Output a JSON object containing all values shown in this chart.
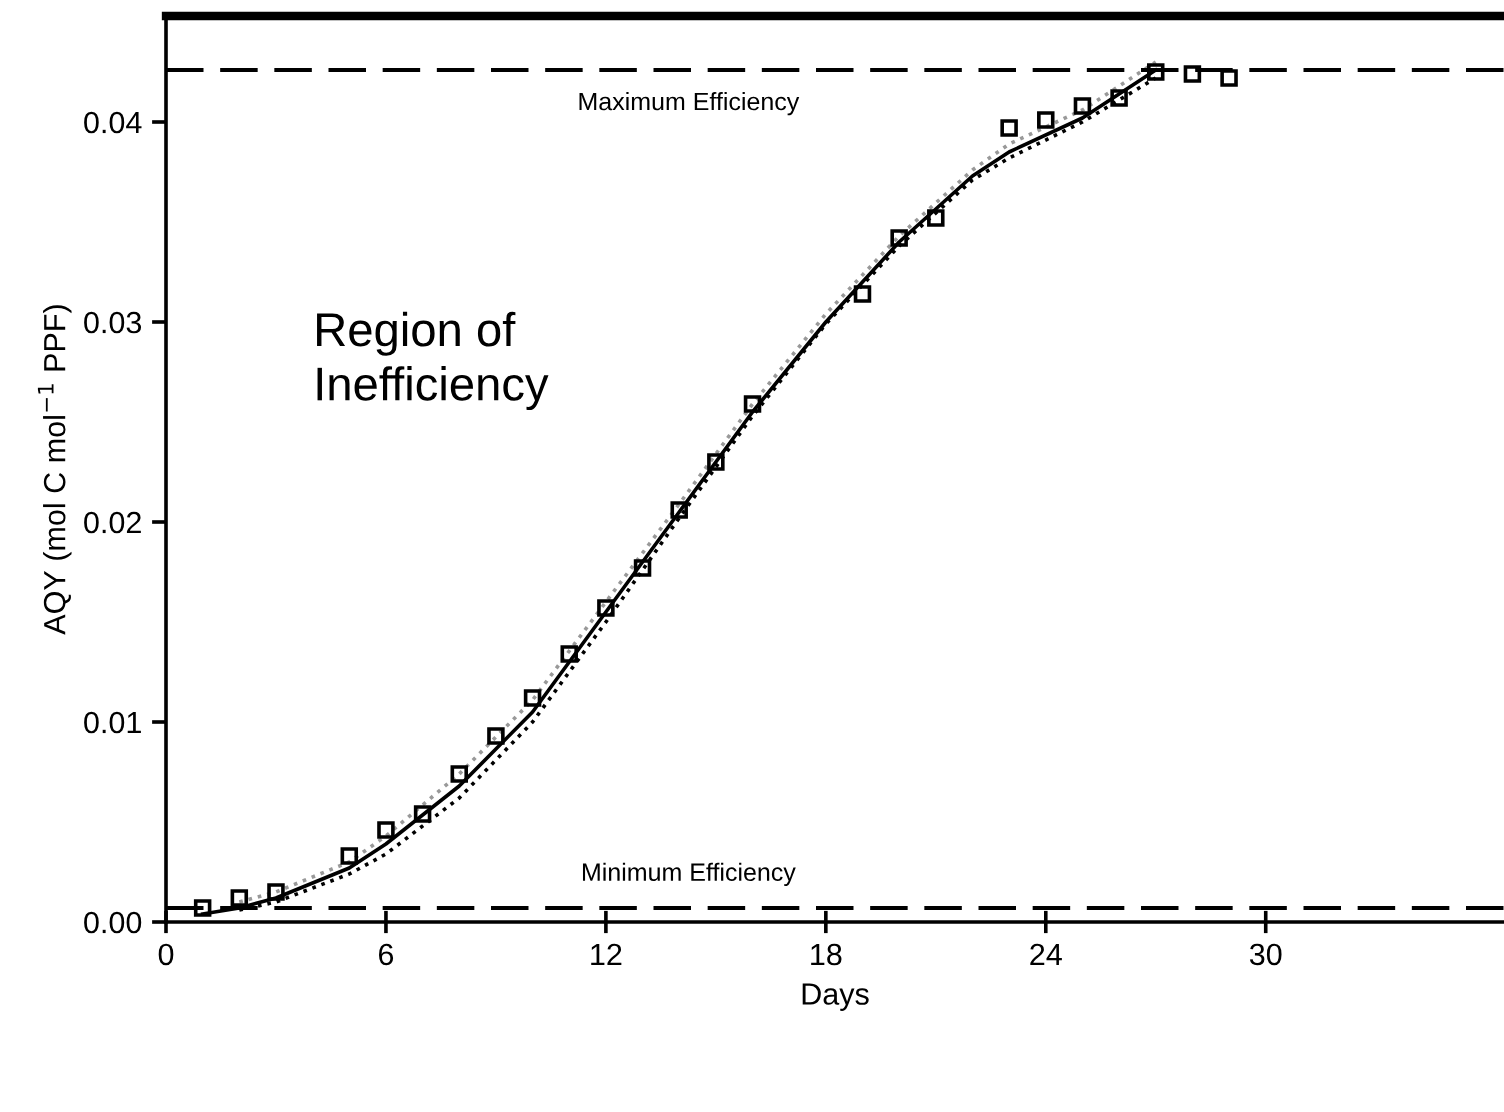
{
  "chart_data": {
    "type": "scatter",
    "xlabel": "Days",
    "ylabel": "AQY (mol C mol$^{−1}$ PPF)",
    "xlim": [
      0,
      36.5
    ],
    "xticks": [
      0,
      6,
      12,
      18,
      24,
      30
    ],
    "ylim": [
      0,
      0.0453
    ],
    "yticks": [
      {
        "value": 0,
        "label": "0.00"
      },
      {
        "value": 0.01,
        "label": "0.01"
      },
      {
        "value": 0.02,
        "label": "0.02"
      },
      {
        "value": 0.03,
        "label": "0.03"
      },
      {
        "value": 0.04,
        "label": "0.04"
      }
    ],
    "grid": false,
    "legend": false,
    "marker": "square",
    "series": [
      {
        "color": "#000000",
        "x": [
          1,
          2,
          3,
          5,
          6,
          7,
          8,
          9,
          10,
          11,
          12,
          13,
          14,
          15,
          16,
          19,
          20,
          21,
          23,
          24,
          25,
          26,
          27,
          28,
          29
        ],
        "values": [
          0.0007,
          0.0012,
          0.0015,
          0.0033,
          0.0046,
          0.0054,
          0.0074,
          0.0093,
          0.0112,
          0.0134,
          0.0157,
          0.0177,
          0.0206,
          0.023,
          0.0259,
          0.0314,
          0.0342,
          0.0352,
          0.0397,
          0.0401,
          0.0408,
          0.0412,
          0.0425,
          0.0424,
          0.0422
        ]
      },
      {
        "type": "line",
        "color": "#000000",
        "line_style": "solid",
        "marker": "none",
        "x": [
          1,
          2,
          3,
          5,
          6,
          8,
          10,
          12,
          14,
          16,
          18,
          20,
          22,
          23,
          25,
          27
        ],
        "values": [
          0.0004,
          0.0007,
          0.0012,
          0.0027,
          0.0039,
          0.0068,
          0.0105,
          0.0155,
          0.0205,
          0.0255,
          0.03,
          0.034,
          0.0373,
          0.0385,
          0.0402,
          0.0426
        ]
      },
      {
        "type": "line",
        "color": "#000000",
        "line_style": "dotted",
        "marker": "none",
        "x": [
          2,
          3,
          5,
          6,
          8,
          10,
          12,
          14,
          16,
          18,
          20,
          22,
          23,
          25,
          27
        ],
        "values": [
          0.0006,
          0.001,
          0.0024,
          0.0034,
          0.0062,
          0.01,
          0.015,
          0.0202,
          0.0253,
          0.0299,
          0.0338,
          0.0371,
          0.0382,
          0.04,
          0.0422
        ]
      },
      {
        "type": "line",
        "color": "#999999",
        "line_style": "dotted",
        "marker": "none",
        "x": [
          2,
          3,
          5,
          6,
          8,
          10,
          12,
          14,
          16,
          18,
          20,
          22,
          23,
          25,
          27
        ],
        "values": [
          0.001,
          0.0015,
          0.003,
          0.0043,
          0.0074,
          0.0111,
          0.016,
          0.0209,
          0.0259,
          0.0304,
          0.0343,
          0.0376,
          0.0389,
          0.0406,
          0.043
        ]
      }
    ],
    "ref_lines": [
      {
        "axis": "y",
        "value": 0.0426,
        "label": "Maximum Efficiency",
        "line_style": "dashed",
        "color": "#000000"
      },
      {
        "axis": "y",
        "value": 0.0007,
        "label": "Minimum Efficiency",
        "line_style": "dashed",
        "color": "#000000"
      }
    ],
    "annotations": [
      "Region of\nInefficiency"
    ]
  }
}
